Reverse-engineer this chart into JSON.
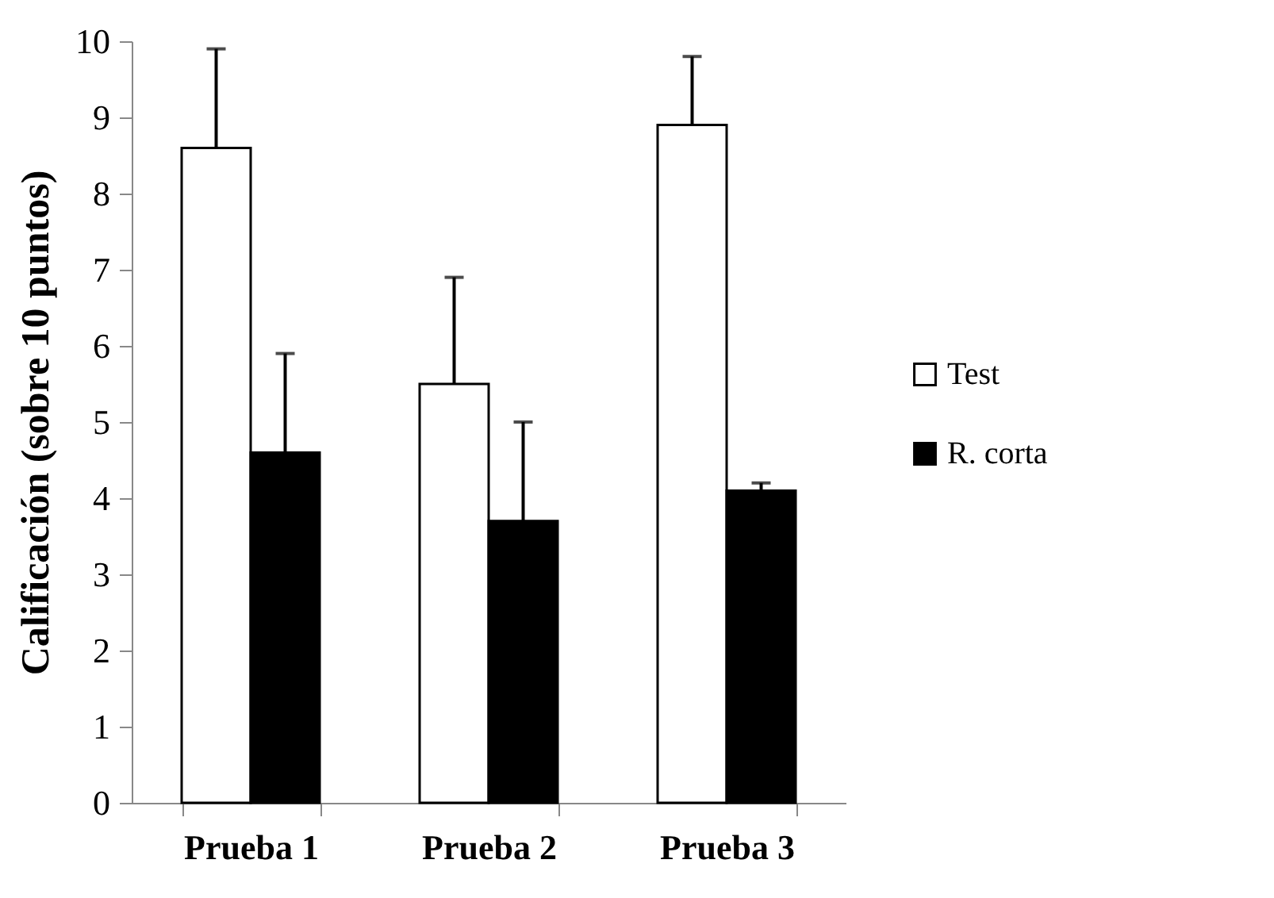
{
  "chart_data": {
    "type": "bar",
    "ylabel": "Calificación (sobre 10 puntos)",
    "categories": [
      "Prueba 1",
      "Prueba 2",
      "Prueba 3"
    ],
    "series": [
      {
        "name": "Test",
        "color": "#ffffff",
        "values": [
          8.6,
          5.5,
          8.9
        ],
        "errors": [
          [
            8.6,
            9.9
          ],
          [
            5.5,
            6.9
          ],
          [
            8.9,
            9.8
          ]
        ]
      },
      {
        "name": "R. corta",
        "color": "#000000",
        "values": [
          4.6,
          3.7,
          4.1
        ],
        "errors": [
          [
            4.6,
            5.9
          ],
          [
            3.7,
            5.0
          ],
          [
            4.1,
            4.2
          ]
        ]
      }
    ],
    "ylim": [
      0,
      10
    ],
    "yticks": [
      0,
      1,
      2,
      3,
      4,
      5,
      6,
      7,
      8,
      9,
      10
    ],
    "grid": false,
    "legend": "right"
  }
}
